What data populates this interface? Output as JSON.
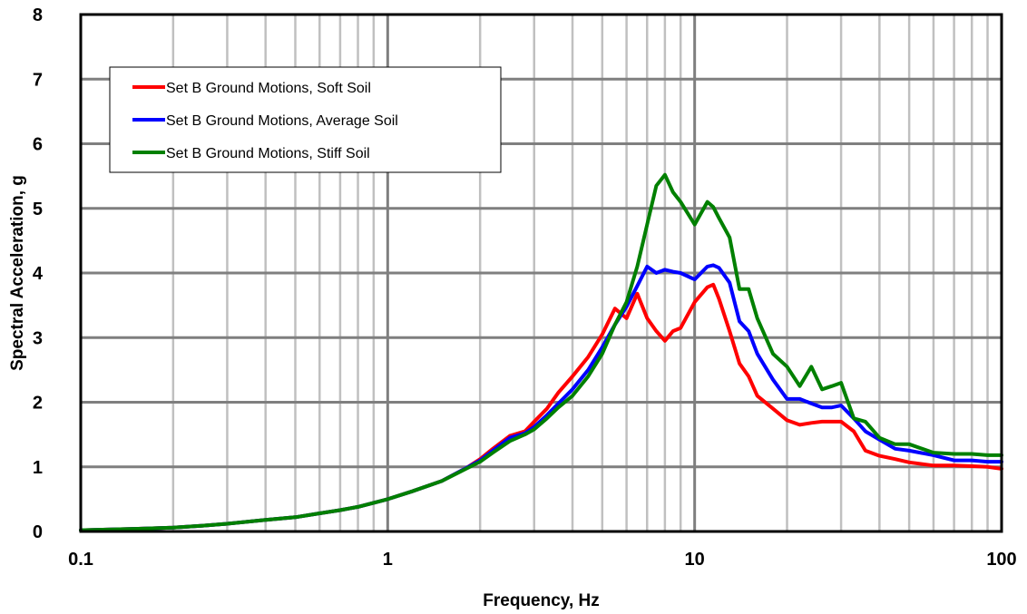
{
  "chart_data": {
    "type": "line",
    "title": "",
    "xlabel": "Frequency, Hz",
    "ylabel": "Spectral Acceleration, g",
    "xscale": "log",
    "xlim": [
      0.1,
      100
    ],
    "ylim": [
      0,
      8
    ],
    "x_ticks": [
      "0.1",
      "1",
      "10",
      "100"
    ],
    "y_ticks": [
      "0",
      "1",
      "2",
      "3",
      "4",
      "5",
      "6",
      "7",
      "8"
    ],
    "grid": true,
    "legend_position": "top-left",
    "series": [
      {
        "name": "Set B Ground Motions, Soft Soil",
        "color": "#ff0000",
        "x": [
          0.1,
          0.15,
          0.2,
          0.25,
          0.3,
          0.4,
          0.5,
          0.6,
          0.7,
          0.8,
          1.0,
          1.2,
          1.5,
          1.8,
          2.0,
          2.2,
          2.5,
          2.8,
          3.0,
          3.3,
          3.6,
          4.0,
          4.5,
          5.0,
          5.5,
          6.0,
          6.5,
          7.0,
          7.5,
          8.0,
          8.5,
          9.0,
          10.0,
          11.0,
          11.5,
          12.0,
          13.0,
          14.0,
          15.0,
          16.0,
          18.0,
          20.0,
          22.0,
          24.0,
          26.0,
          28.0,
          30.0,
          33.0,
          36.0,
          40.0,
          45.0,
          50.0,
          60.0,
          70.0,
          80.0,
          90.0,
          100.0
        ],
        "y": [
          0.02,
          0.04,
          0.06,
          0.09,
          0.12,
          0.18,
          0.22,
          0.28,
          0.33,
          0.38,
          0.5,
          0.62,
          0.78,
          0.98,
          1.12,
          1.28,
          1.48,
          1.55,
          1.7,
          1.9,
          2.15,
          2.4,
          2.7,
          3.05,
          3.45,
          3.3,
          3.68,
          3.3,
          3.1,
          2.95,
          3.1,
          3.15,
          3.55,
          3.78,
          3.82,
          3.6,
          3.1,
          2.6,
          2.4,
          2.1,
          1.9,
          1.72,
          1.65,
          1.68,
          1.7,
          1.7,
          1.7,
          1.55,
          1.25,
          1.17,
          1.12,
          1.07,
          1.02,
          1.02,
          1.01,
          1.0,
          0.97
        ]
      },
      {
        "name": "Set B Ground Motions, Average Soil",
        "color": "#0000ff",
        "x": [
          0.1,
          0.15,
          0.2,
          0.25,
          0.3,
          0.4,
          0.5,
          0.6,
          0.7,
          0.8,
          1.0,
          1.2,
          1.5,
          1.8,
          2.0,
          2.2,
          2.5,
          2.8,
          3.0,
          3.3,
          3.6,
          4.0,
          4.5,
          5.0,
          5.5,
          6.0,
          6.5,
          7.0,
          7.5,
          8.0,
          8.5,
          9.0,
          10.0,
          11.0,
          11.5,
          12.0,
          13.0,
          14.0,
          15.0,
          16.0,
          18.0,
          20.0,
          22.0,
          24.0,
          26.0,
          28.0,
          30.0,
          33.0,
          36.0,
          40.0,
          45.0,
          50.0,
          60.0,
          70.0,
          80.0,
          90.0,
          100.0
        ],
        "y": [
          0.02,
          0.04,
          0.06,
          0.09,
          0.12,
          0.18,
          0.22,
          0.28,
          0.33,
          0.38,
          0.5,
          0.62,
          0.78,
          0.98,
          1.1,
          1.25,
          1.45,
          1.52,
          1.62,
          1.8,
          1.98,
          2.2,
          2.5,
          2.85,
          3.2,
          3.48,
          3.8,
          4.1,
          4.0,
          4.05,
          4.02,
          4.0,
          3.9,
          4.1,
          4.12,
          4.08,
          3.85,
          3.25,
          3.1,
          2.75,
          2.35,
          2.05,
          2.05,
          1.98,
          1.92,
          1.92,
          1.95,
          1.75,
          1.55,
          1.42,
          1.28,
          1.25,
          1.18,
          1.1,
          1.1,
          1.08,
          1.08
        ]
      },
      {
        "name": "Set B Ground Motions, Stiff Soil",
        "color": "#008000",
        "x": [
          0.1,
          0.15,
          0.2,
          0.25,
          0.3,
          0.4,
          0.5,
          0.6,
          0.7,
          0.8,
          1.0,
          1.2,
          1.5,
          1.8,
          2.0,
          2.2,
          2.5,
          2.8,
          3.0,
          3.3,
          3.6,
          4.0,
          4.5,
          5.0,
          5.5,
          6.0,
          6.5,
          7.0,
          7.5,
          8.0,
          8.5,
          9.0,
          10.0,
          11.0,
          11.5,
          12.0,
          13.0,
          14.0,
          15.0,
          16.0,
          18.0,
          20.0,
          22.0,
          24.0,
          26.0,
          28.0,
          30.0,
          33.0,
          36.0,
          40.0,
          45.0,
          50.0,
          60.0,
          70.0,
          80.0,
          90.0,
          100.0
        ],
        "y": [
          0.02,
          0.04,
          0.06,
          0.09,
          0.12,
          0.18,
          0.22,
          0.28,
          0.33,
          0.38,
          0.5,
          0.62,
          0.78,
          0.97,
          1.08,
          1.22,
          1.4,
          1.5,
          1.58,
          1.75,
          1.92,
          2.1,
          2.4,
          2.75,
          3.2,
          3.55,
          4.1,
          4.75,
          5.35,
          5.52,
          5.25,
          5.1,
          4.75,
          5.1,
          5.02,
          4.85,
          4.55,
          3.75,
          3.75,
          3.3,
          2.75,
          2.55,
          2.25,
          2.55,
          2.2,
          2.25,
          2.3,
          1.75,
          1.7,
          1.45,
          1.35,
          1.35,
          1.22,
          1.2,
          1.2,
          1.18,
          1.18
        ]
      }
    ]
  }
}
